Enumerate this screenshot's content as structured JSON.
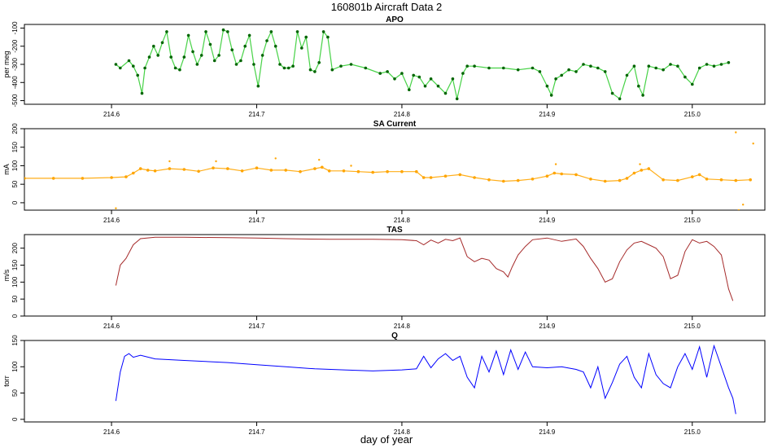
{
  "figure": {
    "title": "160801b   Aircraft Data 2",
    "xlabel": "day of year"
  },
  "chart_data": [
    {
      "type": "scatter",
      "title": "APO",
      "ylabel": "per meg",
      "xlim": [
        214.54,
        215.05
      ],
      "ylim": [
        -520,
        -80
      ],
      "yticks": [
        -500,
        -400,
        -300,
        -200,
        -100
      ],
      "xticks": [
        214.6,
        214.7,
        214.8,
        214.9,
        215.0
      ],
      "color": "#006400",
      "color_light": "#32cd32",
      "x": [
        214.603,
        214.606,
        214.612,
        214.615,
        214.618,
        214.621,
        214.623,
        214.626,
        214.629,
        214.632,
        214.635,
        214.638,
        214.641,
        214.644,
        214.647,
        214.65,
        214.653,
        214.656,
        214.659,
        214.662,
        214.665,
        214.668,
        214.671,
        214.674,
        214.677,
        214.68,
        214.683,
        214.686,
        214.689,
        214.692,
        214.695,
        214.698,
        214.701,
        214.704,
        214.707,
        214.71,
        214.713,
        214.716,
        214.719,
        214.722,
        214.725,
        214.728,
        214.731,
        214.734,
        214.737,
        214.74,
        214.743,
        214.746,
        214.749,
        214.752,
        214.758,
        214.765,
        214.775,
        214.785,
        214.79,
        214.795,
        214.8,
        214.805,
        214.808,
        214.812,
        214.816,
        214.82,
        214.825,
        214.83,
        214.835,
        214.838,
        214.842,
        214.845,
        214.85,
        214.86,
        214.87,
        214.88,
        214.89,
        214.895,
        214.9,
        214.903,
        214.906,
        214.91,
        214.915,
        214.92,
        214.925,
        214.93,
        214.935,
        214.94,
        214.945,
        214.95,
        214.955,
        214.96,
        214.963,
        214.966,
        214.97,
        214.975,
        214.98,
        214.985,
        214.99,
        214.995,
        215.0,
        215.005,
        215.01,
        215.015,
        215.02,
        215.025
      ],
      "y": [
        -300,
        -320,
        -280,
        -310,
        -360,
        -460,
        -320,
        -260,
        -200,
        -250,
        -180,
        -120,
        -260,
        -320,
        -330,
        -260,
        -140,
        -230,
        -300,
        -250,
        -120,
        -190,
        -280,
        -250,
        -110,
        -120,
        -220,
        -300,
        -280,
        -200,
        -140,
        -300,
        -420,
        -250,
        -170,
        -120,
        -200,
        -300,
        -320,
        -320,
        -310,
        -120,
        -210,
        -150,
        -330,
        -340,
        -290,
        -120,
        -150,
        -330,
        -310,
        -300,
        -320,
        -350,
        -340,
        -380,
        -350,
        -440,
        -360,
        -370,
        -420,
        -380,
        -420,
        -460,
        -380,
        -490,
        -350,
        -310,
        -310,
        -320,
        -320,
        -330,
        -320,
        -340,
        -420,
        -470,
        -380,
        -360,
        -330,
        -340,
        -300,
        -310,
        -320,
        -340,
        -460,
        -490,
        -360,
        -310,
        -420,
        -470,
        -310,
        -320,
        -330,
        -300,
        -310,
        -370,
        -410,
        -320,
        -300,
        -310,
        -300,
        -290
      ]
    },
    {
      "type": "scatter",
      "title": "SA Current",
      "ylabel": "mA",
      "xlim": [
        214.54,
        215.05
      ],
      "ylim": [
        -20,
        200
      ],
      "yticks": [
        0,
        50,
        100,
        150,
        200
      ],
      "xticks": [
        214.6,
        214.7,
        214.8,
        214.9,
        215.0
      ],
      "color": "#ffa500",
      "x": [
        214.54,
        214.56,
        214.58,
        214.6,
        214.61,
        214.615,
        214.62,
        214.625,
        214.63,
        214.64,
        214.65,
        214.66,
        214.67,
        214.68,
        214.69,
        214.7,
        214.71,
        214.72,
        214.73,
        214.74,
        214.745,
        214.75,
        214.76,
        214.77,
        214.78,
        214.79,
        214.8,
        214.81,
        214.815,
        214.82,
        214.83,
        214.84,
        214.85,
        214.86,
        214.87,
        214.88,
        214.89,
        214.9,
        214.905,
        214.91,
        214.92,
        214.93,
        214.94,
        214.95,
        214.955,
        214.96,
        214.965,
        214.97,
        214.98,
        214.99,
        215.0,
        215.005,
        215.01,
        215.02,
        215.03,
        215.04
      ],
      "y": [
        66,
        66,
        66,
        68,
        70,
        80,
        92,
        88,
        86,
        92,
        90,
        85,
        94,
        92,
        86,
        94,
        88,
        88,
        84,
        92,
        96,
        86,
        86,
        84,
        82,
        84,
        84,
        84,
        68,
        68,
        72,
        76,
        68,
        62,
        58,
        60,
        64,
        72,
        80,
        78,
        76,
        64,
        58,
        60,
        66,
        80,
        88,
        92,
        62,
        60,
        70,
        76,
        64,
        62,
        60,
        62
      ],
      "outliers": [
        {
          "x": 214.603,
          "y": -15
        },
        {
          "x": 214.64,
          "y": 112
        },
        {
          "x": 214.672,
          "y": 112
        },
        {
          "x": 214.713,
          "y": 120
        },
        {
          "x": 214.743,
          "y": 116
        },
        {
          "x": 214.765,
          "y": 100
        },
        {
          "x": 214.906,
          "y": 104
        },
        {
          "x": 214.964,
          "y": 104
        },
        {
          "x": 215.03,
          "y": 190
        },
        {
          "x": 215.032,
          "y": -20
        },
        {
          "x": 215.035,
          "y": -5
        },
        {
          "x": 215.042,
          "y": 160
        }
      ]
    },
    {
      "type": "line",
      "title": "TAS",
      "ylabel": "m/s",
      "xlim": [
        214.54,
        215.05
      ],
      "ylim": [
        0,
        240
      ],
      "yticks": [
        0,
        50,
        100,
        150,
        200
      ],
      "xticks": [
        214.6,
        214.7,
        214.8,
        214.9,
        215.0
      ],
      "color": "#a52a2a",
      "x": [
        214.603,
        214.606,
        214.61,
        214.615,
        214.62,
        214.63,
        214.65,
        214.68,
        214.7,
        214.72,
        214.75,
        214.78,
        214.8,
        214.81,
        214.815,
        214.82,
        214.825,
        214.83,
        214.835,
        214.84,
        214.845,
        214.85,
        214.855,
        214.86,
        214.865,
        214.87,
        214.873,
        214.876,
        214.88,
        214.885,
        214.89,
        214.9,
        214.91,
        214.92,
        214.925,
        214.93,
        214.935,
        214.94,
        214.945,
        214.95,
        214.955,
        214.96,
        214.965,
        214.97,
        214.975,
        214.98,
        214.985,
        214.99,
        214.995,
        215.0,
        215.005,
        215.01,
        215.015,
        215.02,
        215.025,
        215.028
      ],
      "y": [
        90,
        150,
        170,
        210,
        228,
        232,
        232,
        231,
        230,
        228,
        226,
        226,
        225,
        222,
        210,
        224,
        215,
        226,
        222,
        230,
        175,
        160,
        170,
        165,
        140,
        130,
        115,
        145,
        180,
        205,
        225,
        230,
        220,
        227,
        205,
        170,
        140,
        100,
        110,
        160,
        195,
        215,
        220,
        210,
        200,
        175,
        110,
        120,
        190,
        225,
        215,
        220,
        205,
        180,
        80,
        45
      ]
    },
    {
      "type": "line",
      "title": "Q",
      "ylabel": "torr",
      "xlim": [
        214.54,
        215.05
      ],
      "ylim": [
        -5,
        150
      ],
      "yticks": [
        0,
        50,
        100,
        150
      ],
      "xticks": [
        214.6,
        214.7,
        214.8,
        214.9,
        215.0
      ],
      "color": "#0000ff",
      "x": [
        214.603,
        214.606,
        214.609,
        214.612,
        214.615,
        214.62,
        214.63,
        214.65,
        214.68,
        214.7,
        214.72,
        214.74,
        214.76,
        214.78,
        214.8,
        214.81,
        214.815,
        214.82,
        214.825,
        214.83,
        214.835,
        214.84,
        214.845,
        214.85,
        214.855,
        214.86,
        214.865,
        214.87,
        214.875,
        214.88,
        214.885,
        214.89,
        214.9,
        214.91,
        214.92,
        214.925,
        214.93,
        214.935,
        214.94,
        214.945,
        214.95,
        214.955,
        214.96,
        214.965,
        214.97,
        214.975,
        214.98,
        214.985,
        214.99,
        214.995,
        215.0,
        215.005,
        215.01,
        215.015,
        215.02,
        215.025,
        215.028,
        215.03
      ],
      "y": [
        35,
        90,
        120,
        125,
        118,
        122,
        115,
        112,
        108,
        104,
        100,
        96,
        94,
        92,
        94,
        96,
        120,
        98,
        115,
        125,
        112,
        120,
        80,
        60,
        120,
        90,
        130,
        85,
        132,
        95,
        128,
        100,
        98,
        100,
        95,
        90,
        60,
        100,
        40,
        70,
        105,
        120,
        80,
        60,
        125,
        85,
        68,
        60,
        100,
        125,
        95,
        138,
        80,
        140,
        100,
        60,
        40,
        10
      ]
    }
  ]
}
